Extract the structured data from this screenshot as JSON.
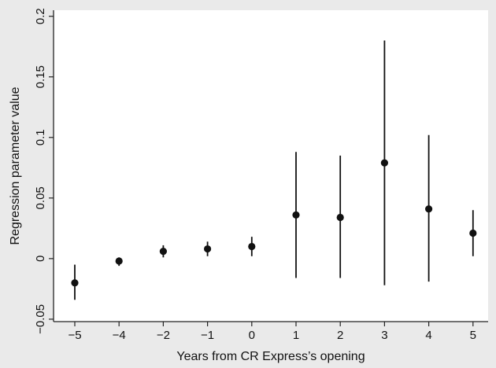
{
  "chart_data": {
    "type": "scatter",
    "title": "",
    "xlabel": "Years from CR Express’s opening",
    "ylabel": "Regression parameter value",
    "x_ticks": [
      "−5",
      "−4",
      "−2",
      "−1",
      "0",
      "1",
      "2",
      "3",
      "4",
      "5"
    ],
    "y_ticks": [
      {
        "value": -0.05,
        "label": "−0.05"
      },
      {
        "value": 0,
        "label": "0"
      },
      {
        "value": 0.05,
        "label": "0.05"
      },
      {
        "value": 0.1,
        "label": "0.1"
      },
      {
        "value": 0.15,
        "label": "0.15"
      },
      {
        "value": 0.2,
        "label": "0.2"
      }
    ],
    "ylim": [
      -0.052,
      0.205
    ],
    "grid": false,
    "legend": "none",
    "points": [
      {
        "x": "−5",
        "y": -0.02,
        "ci_low": -0.034,
        "ci_high": -0.005
      },
      {
        "x": "−4",
        "y": -0.002,
        "ci_low": -0.006,
        "ci_high": 0.001
      },
      {
        "x": "−2",
        "y": 0.006,
        "ci_low": 0.001,
        "ci_high": 0.011
      },
      {
        "x": "−1",
        "y": 0.008,
        "ci_low": 0.002,
        "ci_high": 0.014
      },
      {
        "x": "0",
        "y": 0.01,
        "ci_low": 0.002,
        "ci_high": 0.018
      },
      {
        "x": "1",
        "y": 0.036,
        "ci_low": -0.016,
        "ci_high": 0.088
      },
      {
        "x": "2",
        "y": 0.034,
        "ci_low": -0.016,
        "ci_high": 0.085
      },
      {
        "x": "3",
        "y": 0.079,
        "ci_low": -0.022,
        "ci_high": 0.18
      },
      {
        "x": "4",
        "y": 0.041,
        "ci_low": -0.019,
        "ci_high": 0.102
      },
      {
        "x": "5",
        "y": 0.021,
        "ci_low": 0.002,
        "ci_high": 0.04
      }
    ],
    "colors": {
      "marker": "#111111",
      "plot_background": "#ffffff",
      "page_background": "#eaeaea"
    }
  }
}
